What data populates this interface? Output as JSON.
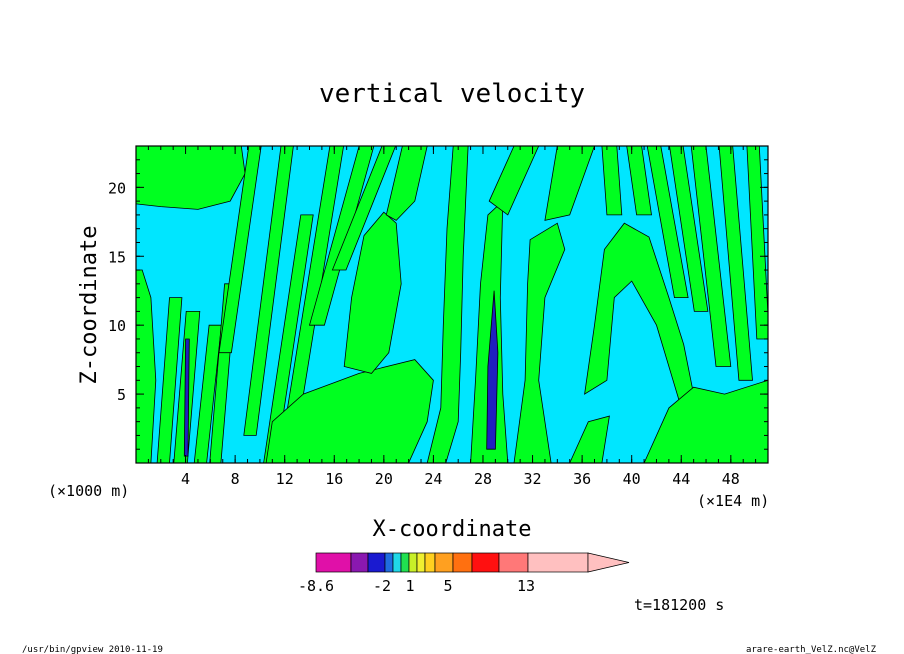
{
  "chart_data": {
    "type": "heatmap",
    "title": "vertical velocity",
    "xlabel": "X-coordinate",
    "ylabel": "Z-coordinate",
    "x_unit_label": "(×1E4 m)",
    "y_unit_label": "(×1000 m)",
    "x_ticks": [
      "4",
      "8",
      "12",
      "16",
      "20",
      "24",
      "28",
      "32",
      "36",
      "40",
      "44",
      "48"
    ],
    "y_ticks": [
      "5",
      "10",
      "15",
      "20"
    ],
    "xlim": [
      0,
      51
    ],
    "ylim": [
      0,
      23
    ],
    "grid": false,
    "colorbar": {
      "tick_labels": [
        "-8.6",
        "-2",
        "1",
        "5",
        "13"
      ],
      "colors": [
        "#e010a8",
        "#8a18b0",
        "#1a1ad0",
        "#1f6de0",
        "#20d8e8",
        "#20e050",
        "#c8f028",
        "#f0f030",
        "#ffd020",
        "#ffa020",
        "#ff7010",
        "#ff1010",
        "#ff7878",
        "#ffc0c0"
      ]
    },
    "field_colors": {
      "weak_downdraft": "#00e6ff",
      "weak_updraft": "#00ff20",
      "strong_downdraft": "#2020c0",
      "contour": "#000000"
    },
    "annotation": "t=181200 s"
  },
  "footer": {
    "left": "/usr/bin/gpview  2010-11-19",
    "right": "arare-earth_VelZ.nc@VelZ"
  }
}
